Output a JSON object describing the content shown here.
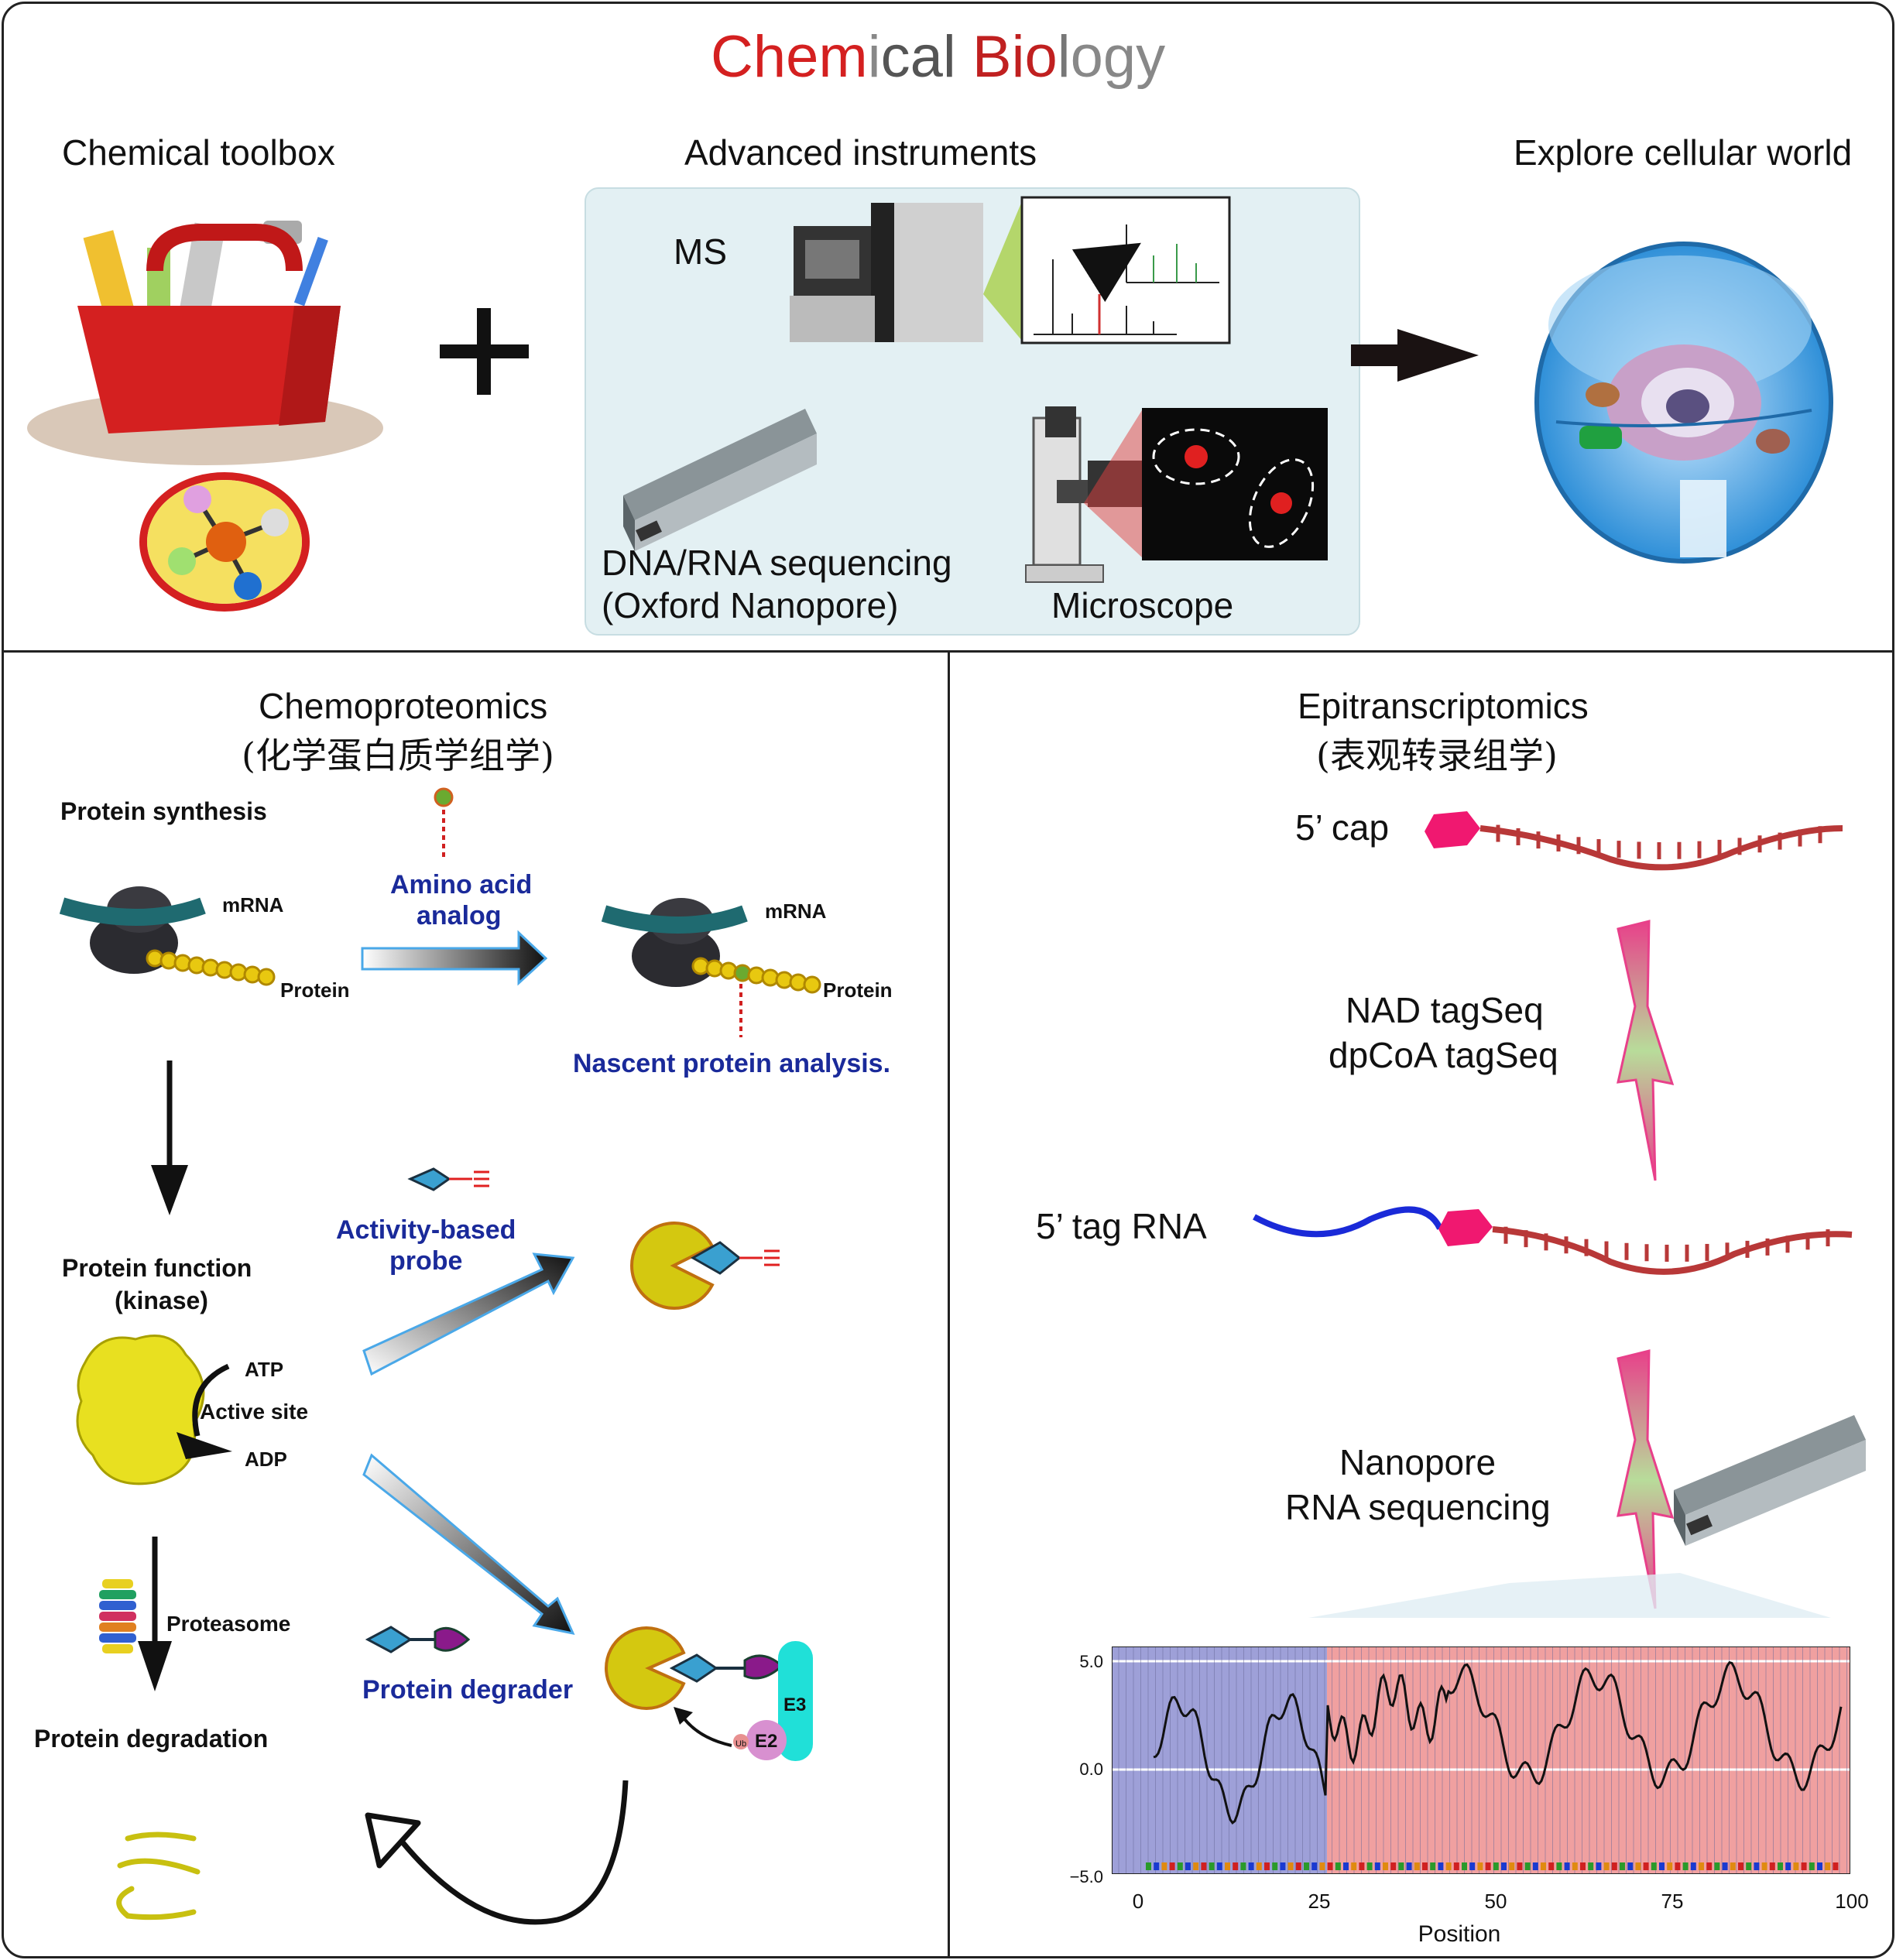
{
  "title": {
    "parts": [
      {
        "text": "Chem",
        "color": "#d42020"
      },
      {
        "text": "i",
        "color": "#888888"
      },
      {
        "text": "cal ",
        "color": "#555555"
      },
      {
        "text": "Bio",
        "color": "#c02020"
      },
      {
        "text": "l",
        "color": "#777777"
      },
      {
        "text": "ogy",
        "color": "#888888"
      }
    ]
  },
  "top": {
    "toolbox_label": "Chemical toolbox",
    "instruments_label": "Advanced instruments",
    "explore_label": "Explore cellular world",
    "plus": "+",
    "ms_label": "MS",
    "sequencing_label_1": "DNA/RNA sequencing",
    "sequencing_label_2": "(Oxford Nanopore)",
    "microscope_label": "Microscope"
  },
  "left": {
    "heading": "Chemoproteomics",
    "heading_cn": "(化学蛋白质学组学)",
    "protein_synthesis": "Protein synthesis",
    "mrna_1": "mRNA",
    "protein_1": "Protein",
    "amino_acid_analog_1": "Amino acid",
    "amino_acid_analog_2": "analog",
    "mrna_2": "mRNA",
    "protein_2": "Protein",
    "nascent": "Nascent protein analysis.",
    "protein_function_1": "Protein function",
    "protein_function_2": "(kinase)",
    "atp": "ATP",
    "active_site": "Active site",
    "adp": "ADP",
    "activity_probe_1": "Activity-based",
    "activity_probe_2": "probe",
    "proteasome": "Proteasome",
    "protein_degradation": "Protein degradation",
    "protein_degrader": "Protein degrader",
    "e3": "E3",
    "e2": "E2",
    "ub": "Ub"
  },
  "right": {
    "heading": "Epitranscriptomics",
    "heading_cn": "(表观转录组学)",
    "cap": "5’ cap",
    "tagseq_1": "NAD tagSeq",
    "tagseq_2": "dpCoA tagSeq",
    "tag_rna": "5’ tag RNA",
    "nanopore_1": "Nanopore",
    "nanopore_2": "RNA sequencing",
    "plot": {
      "y_ticks": [
        "5.0",
        "0.0",
        "−5.0"
      ],
      "x_ticks": [
        "0",
        "25",
        "50",
        "75",
        "100"
      ],
      "xlabel": "Position"
    }
  }
}
